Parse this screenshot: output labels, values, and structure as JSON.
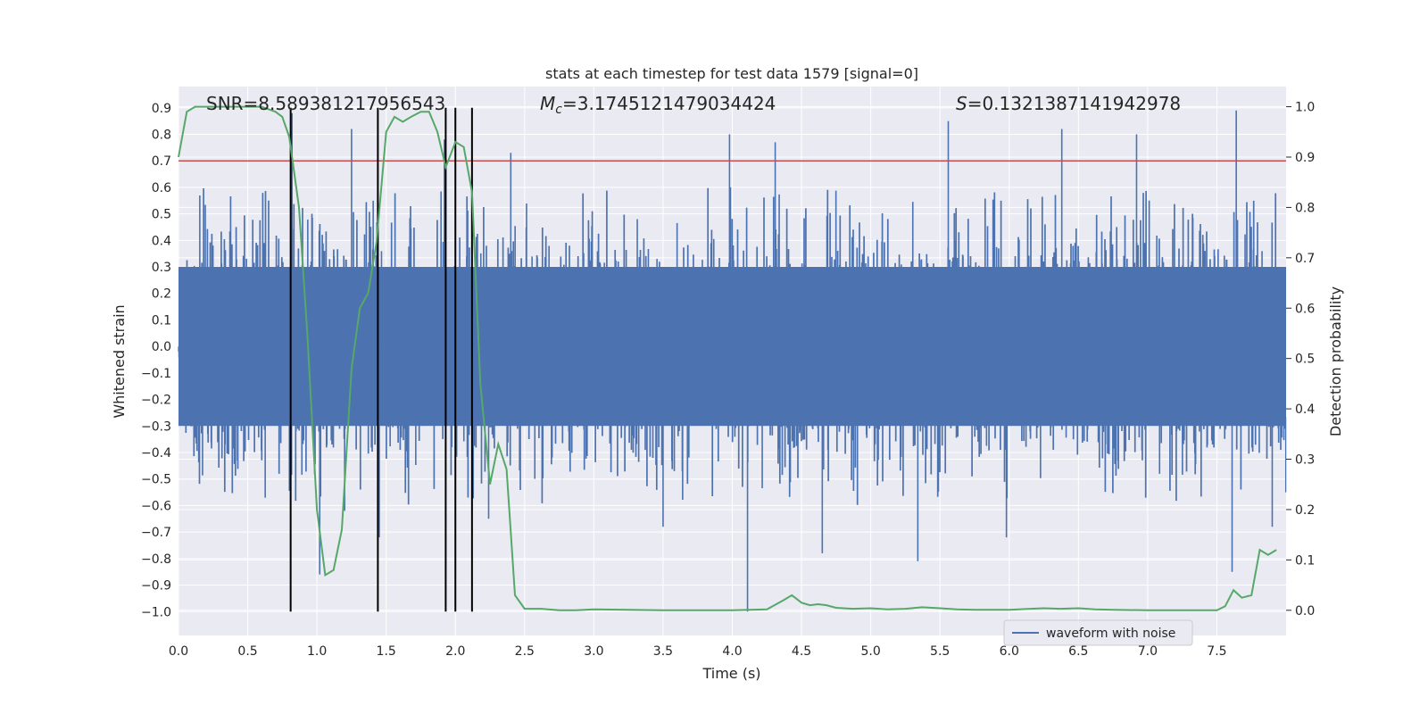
{
  "chart_data": {
    "type": "line",
    "title": "stats at each timestep for test data 1579 [signal=0]",
    "xlabel": "Time (s)",
    "ylabel_left": "Whitened strain",
    "ylabel_right": "Detection probability",
    "xlim": [
      0,
      8
    ],
    "ylim_left": [
      -1.09,
      0.98
    ],
    "ylim_right": [
      -0.05,
      1.04
    ],
    "x_ticks": [
      0.0,
      0.5,
      1.0,
      1.5,
      2.0,
      2.5,
      3.0,
      3.5,
      4.0,
      4.5,
      5.0,
      5.5,
      6.0,
      6.5,
      7.0,
      7.5
    ],
    "x_tick_labels": [
      "0.0",
      "0.5",
      "1.0",
      "1.5",
      "2.0",
      "2.5",
      "3.0",
      "3.5",
      "4.0",
      "4.5",
      "5.0",
      "5.5",
      "6.0",
      "6.5",
      "7.0",
      "7.5"
    ],
    "y_left_ticks": [
      0.9,
      0.8,
      0.7,
      0.6,
      0.5,
      0.4,
      0.3,
      0.2,
      0.1,
      0.0,
      -0.1,
      -0.2,
      -0.3,
      -0.4,
      -0.5,
      -0.6,
      -0.7,
      -0.8,
      -0.9,
      -1.0
    ],
    "y_left_tick_labels": [
      "0.9",
      "0.8",
      "0.7",
      "0.6",
      "0.5",
      "0.4",
      "0.3",
      "0.2",
      "0.1",
      "0.0",
      "−0.1",
      "−0.2",
      "−0.3",
      "−0.4",
      "−0.5",
      "−0.6",
      "−0.7",
      "−0.8",
      "−0.9",
      "−1.0"
    ],
    "y_right_ticks": [
      1.0,
      0.9,
      0.8,
      0.7,
      0.6,
      0.5,
      0.4,
      0.3,
      0.2,
      0.1,
      0.0
    ],
    "y_right_tick_labels": [
      "1.0",
      "0.9",
      "0.8",
      "0.7",
      "0.6",
      "0.5",
      "0.4",
      "0.3",
      "0.2",
      "0.1",
      "0.0"
    ],
    "stats": {
      "snr": "SNR=8.589381217956543",
      "mc_symbol": "M",
      "mc_sub": "c",
      "mc_value": "=3.1745121479034424",
      "s_symbol": "S",
      "s_value": "=0.1321387141942978"
    },
    "threshold": {
      "value": 0.7,
      "axis": "left",
      "color": "#c44e52"
    },
    "vertical_markers": {
      "x": [
        0.81,
        1.44,
        1.93,
        2.0,
        2.12
      ],
      "y_from": -1.0,
      "y_to": 0.9,
      "color": "#000000"
    },
    "series": [
      {
        "name": "waveform with noise",
        "axis": "left",
        "color": "#4c72b0",
        "kind": "noise",
        "samples": 3200,
        "core_amplitude": 0.3,
        "spikes": [
          {
            "x": 0.82,
            "y": 0.88
          },
          {
            "x": 1.02,
            "y": -0.86
          },
          {
            "x": 1.2,
            "y": -0.62
          },
          {
            "x": 1.25,
            "y": 0.82
          },
          {
            "x": 1.45,
            "y": -0.72
          },
          {
            "x": 1.92,
            "y": 0.78
          },
          {
            "x": 2.24,
            "y": -0.65
          },
          {
            "x": 2.4,
            "y": 0.73
          },
          {
            "x": 3.5,
            "y": -0.68
          },
          {
            "x": 3.98,
            "y": 0.8
          },
          {
            "x": 4.11,
            "y": -1.0
          },
          {
            "x": 4.31,
            "y": 0.77
          },
          {
            "x": 4.65,
            "y": -0.78
          },
          {
            "x": 5.34,
            "y": -0.81
          },
          {
            "x": 5.56,
            "y": 0.85
          },
          {
            "x": 5.98,
            "y": -0.72
          },
          {
            "x": 6.38,
            "y": 0.82
          },
          {
            "x": 6.92,
            "y": 0.8
          },
          {
            "x": 7.61,
            "y": -0.85
          },
          {
            "x": 7.64,
            "y": 0.89
          },
          {
            "x": 7.9,
            "y": -0.68
          }
        ]
      },
      {
        "name": "detection probability",
        "axis": "right",
        "color": "#55a868",
        "kind": "line",
        "x": [
          0.0,
          0.06,
          0.12,
          0.2,
          0.3,
          0.4,
          0.5,
          0.6,
          0.7,
          0.75,
          0.8,
          0.87,
          0.93,
          1.0,
          1.06,
          1.12,
          1.18,
          1.25,
          1.31,
          1.37,
          1.43,
          1.5,
          1.56,
          1.62,
          1.68,
          1.75,
          1.81,
          1.87,
          1.93,
          2.0,
          2.06,
          2.12,
          2.18,
          2.25,
          2.31,
          2.37,
          2.43,
          2.5,
          2.62,
          2.75,
          2.87,
          3.0,
          3.25,
          3.5,
          3.75,
          4.0,
          4.25,
          4.37,
          4.43,
          4.5,
          4.56,
          4.62,
          4.68,
          4.75,
          4.87,
          5.0,
          5.12,
          5.25,
          5.37,
          5.5,
          5.62,
          5.75,
          6.0,
          6.25,
          6.37,
          6.5,
          6.62,
          6.75,
          7.0,
          7.25,
          7.5,
          7.56,
          7.62,
          7.68,
          7.75,
          7.81,
          7.87,
          7.93
        ],
        "y": [
          0.9,
          0.99,
          1.0,
          1.0,
          1.0,
          1.0,
          1.0,
          1.0,
          0.99,
          0.98,
          0.94,
          0.8,
          0.55,
          0.2,
          0.07,
          0.08,
          0.16,
          0.48,
          0.6,
          0.63,
          0.73,
          0.95,
          0.98,
          0.97,
          0.98,
          0.99,
          0.99,
          0.95,
          0.88,
          0.93,
          0.92,
          0.83,
          0.45,
          0.25,
          0.33,
          0.28,
          0.03,
          0.003,
          0.003,
          0.0,
          0.0,
          0.002,
          0.001,
          0.0,
          0.0,
          0.0,
          0.002,
          0.02,
          0.03,
          0.015,
          0.01,
          0.012,
          0.01,
          0.005,
          0.003,
          0.004,
          0.002,
          0.003,
          0.006,
          0.004,
          0.002,
          0.001,
          0.001,
          0.004,
          0.003,
          0.004,
          0.002,
          0.001,
          0.0,
          0.0,
          0.0,
          0.008,
          0.04,
          0.025,
          0.03,
          0.12,
          0.11,
          0.12
        ]
      }
    ],
    "legend": {
      "position": "lower-right",
      "entries": [
        "waveform with noise"
      ]
    }
  }
}
